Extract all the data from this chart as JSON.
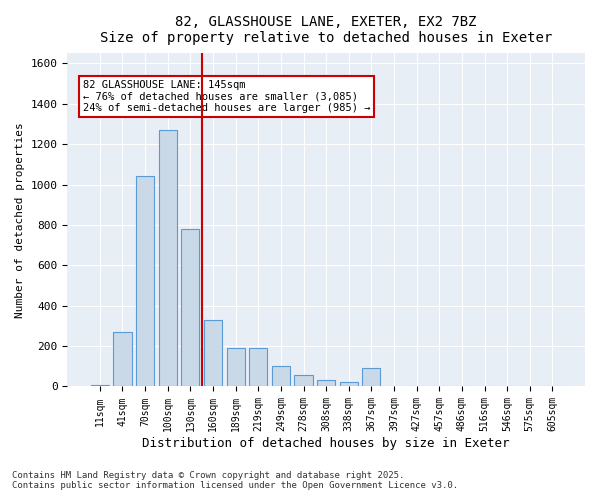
{
  "title": "82, GLASSHOUSE LANE, EXETER, EX2 7BZ",
  "subtitle": "Size of property relative to detached houses in Exeter",
  "xlabel": "Distribution of detached houses by size in Exeter",
  "ylabel": "Number of detached properties",
  "bar_color": "#c9d9e8",
  "bar_edge_color": "#5b9bd5",
  "background_color": "#e8eef5",
  "property_size": 145,
  "property_label": "82 GLASSHOUSE LANE: 145sqm",
  "annotation_line1": "← 76% of detached houses are smaller (3,085)",
  "annotation_line2": "24% of semi-detached houses are larger (985) →",
  "vline_color": "#cc0000",
  "annotation_box_color": "#cc0000",
  "categories": [
    "11sqm",
    "41sqm",
    "70sqm",
    "100sqm",
    "130sqm",
    "160sqm",
    "189sqm",
    "219sqm",
    "249sqm",
    "278sqm",
    "308sqm",
    "338sqm",
    "367sqm",
    "397sqm",
    "427sqm",
    "457sqm",
    "486sqm",
    "516sqm",
    "546sqm",
    "575sqm",
    "605sqm"
  ],
  "values": [
    5,
    270,
    1040,
    1270,
    780,
    330,
    190,
    190,
    100,
    55,
    30,
    20,
    90,
    0,
    0,
    0,
    0,
    0,
    0,
    0,
    0
  ],
  "ylim": [
    0,
    1650
  ],
  "yticks": [
    0,
    200,
    400,
    600,
    800,
    1000,
    1200,
    1400,
    1600
  ],
  "footnote1": "Contains HM Land Registry data © Crown copyright and database right 2025.",
  "footnote2": "Contains public sector information licensed under the Open Government Licence v3.0."
}
